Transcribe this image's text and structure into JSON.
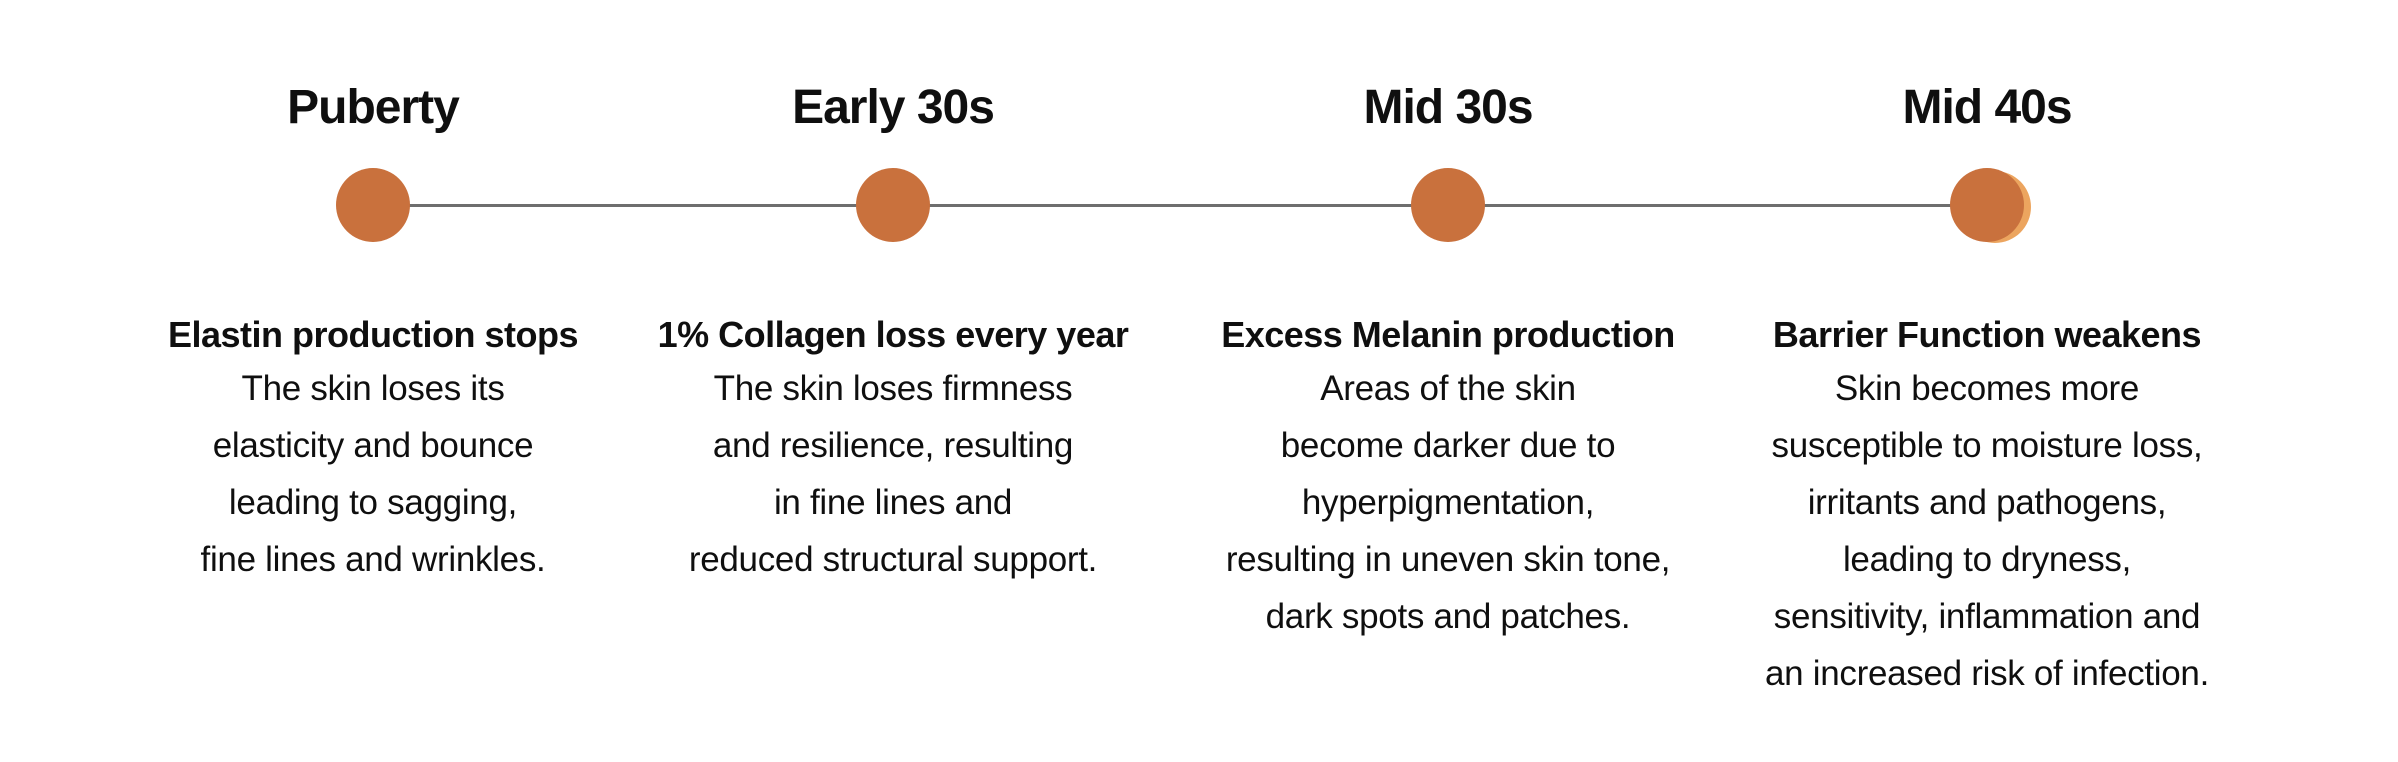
{
  "timeline": {
    "accent_color": "#C9713D",
    "halo_color": "#ECA55F",
    "line_color": "#6E6E6E",
    "stages": [
      {
        "age": "Puberty",
        "title": "Elastin production stops",
        "lines": [
          "The skin loses its",
          "elasticity and bounce",
          "leading to sagging,",
          "fine lines and wrinkles."
        ]
      },
      {
        "age": "Early 30s",
        "title": "1% Collagen loss every year",
        "lines": [
          "The skin loses firmness",
          "and resilience, resulting",
          "in fine lines and",
          "reduced structural support."
        ]
      },
      {
        "age": "Mid 30s",
        "title": "Excess Melanin production",
        "lines": [
          "Areas of the skin",
          "become darker due to",
          "hyperpigmentation,",
          "resulting in uneven skin tone,",
          "dark spots and patches."
        ]
      },
      {
        "age": "Mid 40s",
        "title": "Barrier Function weakens",
        "lines": [
          "Skin becomes more",
          "susceptible to moisture loss,",
          "irritants and pathogens,",
          "leading to dryness,",
          "sensitivity, inflammation and",
          "an increased risk of infection."
        ]
      }
    ]
  }
}
